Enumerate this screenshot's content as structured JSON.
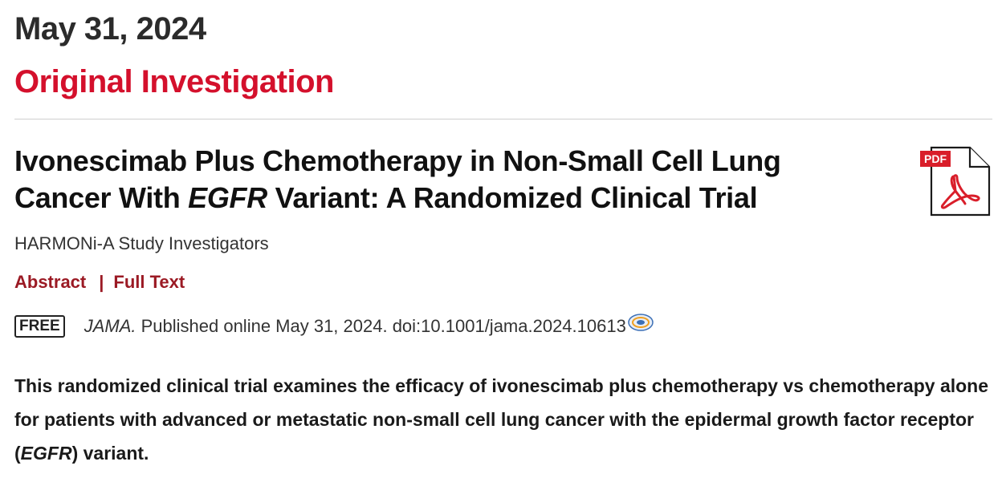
{
  "date": "May 31, 2024",
  "category": "Original Investigation",
  "article": {
    "title_part1": "Ivonescimab Plus Chemotherapy in Non-Small Cell Lung Cancer With ",
    "title_gene": "EGFR",
    "title_part2": " Variant: A Randomized Clinical Trial",
    "authors": "HARMONi-A Study Investigators",
    "links": {
      "abstract": "Abstract",
      "separator": "|",
      "full_text": "Full Text"
    },
    "access_badge": "FREE",
    "journal": "JAMA.",
    "citation": " Published online May 31, 2024. doi:10.1001/jama.2024.10613",
    "summary_part1": "This randomized clinical trial examines the efficacy of ivonescimab plus chemotherapy vs chemotherapy alone for patients with advanced or metastatic non-small cell lung cancer with the epidermal growth factor receptor (",
    "summary_gene": "EGFR",
    "summary_part2": ") variant.",
    "pdf_label": "PDF"
  },
  "icons": {
    "pdf": "pdf-file-icon",
    "citation": "crossmark-icon"
  },
  "colors": {
    "category": "#d4102c",
    "links": "#9b1a24",
    "pdf_red": "#d91e2a"
  }
}
